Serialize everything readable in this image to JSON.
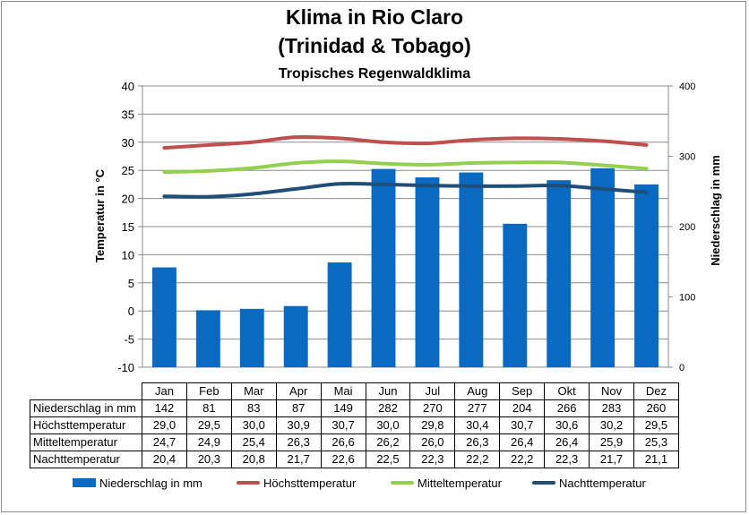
{
  "title_line1": "Klima in Rio Claro",
  "title_line2": "(Trinidad & Tobago)",
  "subtitle": "Tropisches Regenwaldklima",
  "chart_data": {
    "type": "bar",
    "categories": [
      "Jan",
      "Feb",
      "Mar",
      "Apr",
      "Mai",
      "Jun",
      "Jul",
      "Aug",
      "Sep",
      "Okt",
      "Nov",
      "Dez"
    ],
    "ylabel_left": "Temperatur in °C",
    "ylabel_right": "Niederschlag in mm",
    "ylim_left": [
      -10,
      40
    ],
    "ylim_right": [
      0,
      400
    ],
    "yticks_left": [
      40,
      35,
      30,
      25,
      20,
      15,
      10,
      5,
      0,
      -5,
      -10
    ],
    "yticks_right": [
      400,
      300,
      200,
      100,
      0
    ],
    "grid": true,
    "legend_position": "bottom",
    "series": [
      {
        "name": "Niederschlag in mm",
        "kind": "bar",
        "axis": "right",
        "color": "#0a6ac2",
        "values": [
          142,
          81,
          83,
          87,
          149,
          282,
          270,
          277,
          204,
          266,
          283,
          260
        ],
        "labels": [
          "142",
          "81",
          "83",
          "87",
          "149",
          "282",
          "270",
          "277",
          "204",
          "266",
          "283",
          "260"
        ]
      },
      {
        "name": "Höchsttemperatur",
        "kind": "line",
        "axis": "left",
        "color": "#c0504d",
        "values": [
          29.0,
          29.5,
          30.0,
          30.9,
          30.7,
          30.0,
          29.8,
          30.4,
          30.7,
          30.6,
          30.2,
          29.5
        ],
        "labels": [
          "29,0",
          "29,5",
          "30,0",
          "30,9",
          "30,7",
          "30,0",
          "29,8",
          "30,4",
          "30,7",
          "30,6",
          "30,2",
          "29,5"
        ]
      },
      {
        "name": "Mitteltemperatur",
        "kind": "line",
        "axis": "left",
        "color": "#92d050",
        "values": [
          24.7,
          24.9,
          25.4,
          26.3,
          26.6,
          26.2,
          26.0,
          26.3,
          26.4,
          26.4,
          25.9,
          25.3
        ],
        "labels": [
          "24,7",
          "24,9",
          "25,4",
          "26,3",
          "26,6",
          "26,2",
          "26,0",
          "26,3",
          "26,4",
          "26,4",
          "25,9",
          "25,3"
        ]
      },
      {
        "name": "Nachttemperatur",
        "kind": "line",
        "axis": "left",
        "color": "#1f4e79",
        "values": [
          20.4,
          20.3,
          20.8,
          21.7,
          22.6,
          22.5,
          22.3,
          22.2,
          22.2,
          22.3,
          21.7,
          21.1
        ],
        "labels": [
          "20,4",
          "20,3",
          "20,8",
          "21,7",
          "22,6",
          "22,5",
          "22,3",
          "22,2",
          "22,2",
          "22,3",
          "21,7",
          "21,1"
        ]
      }
    ]
  }
}
